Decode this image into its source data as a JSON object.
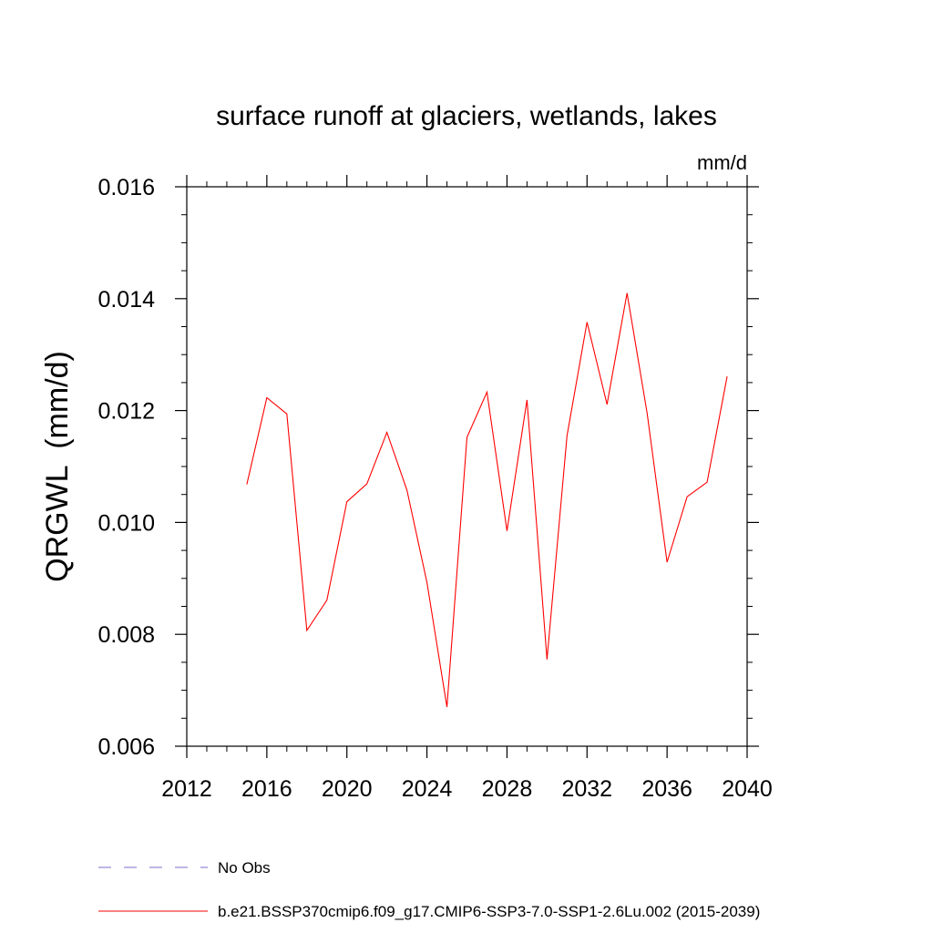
{
  "chart_data": {
    "type": "line",
    "title": "surface runoff at glaciers, wetlands, lakes",
    "units_label": "mm/d",
    "ylabel": "QRGWL  (mm/d)",
    "xlabel": "",
    "xlim": [
      2012,
      2040
    ],
    "ylim": [
      0.006,
      0.016
    ],
    "xticks": [
      "2012",
      "2016",
      "2020",
      "2024",
      "2028",
      "2032",
      "2036",
      "2040"
    ],
    "yticks": [
      "0.006",
      "0.008",
      "0.010",
      "0.012",
      "0.014",
      "0.016"
    ],
    "series": [
      {
        "name": "b.e21.BSSP370cmip6.f09_g17.CMIP6-SSP3-7.0-SSP1-2.6Lu.002 (2015-2039)",
        "color": "#ff0000",
        "x": [
          2015,
          2016,
          2017,
          2018,
          2019,
          2020,
          2021,
          2022,
          2023,
          2024,
          2025,
          2026,
          2027,
          2028,
          2029,
          2030,
          2031,
          2032,
          2033,
          2034,
          2035,
          2036,
          2037,
          2038,
          2039
        ],
        "values": [
          0.01068,
          0.01223,
          0.01194,
          0.00807,
          0.00861,
          0.01037,
          0.01069,
          0.01161,
          0.01058,
          0.00893,
          0.0067,
          0.01152,
          0.01233,
          0.00985,
          0.01219,
          0.00755,
          0.01155,
          0.01358,
          0.01211,
          0.0141,
          0.01196,
          0.00929,
          0.01046,
          0.01072,
          0.01261
        ]
      }
    ],
    "legend": [
      {
        "label": "No Obs",
        "color": "#7b6cc9",
        "dash": "dashed"
      },
      {
        "label": "b.e21.BSSP370cmip6.f09_g17.CMIP6-SSP3-7.0-SSP1-2.6Lu.002 (2015-2039)",
        "color": "#ff0000",
        "dash": "solid"
      }
    ],
    "legend_position": "bottom",
    "grid": false
  }
}
